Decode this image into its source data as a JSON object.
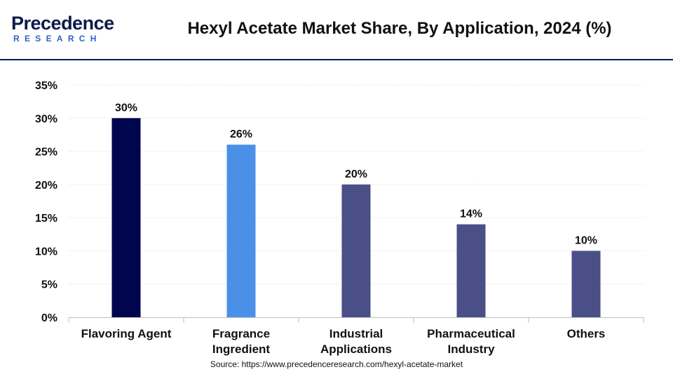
{
  "header": {
    "logo_top": "Precedence",
    "logo_bottom": "RESEARCH",
    "title": "Hexyl Acetate Market Share, By Application, 2024 (%)"
  },
  "source": "Source: https://www.precedenceresearch.com/hexyl-acetate-market",
  "colors": {
    "flavoring": "#00064d",
    "fragrance": "#4a90e8",
    "other_bars": "#4b4f87"
  },
  "chart_data": {
    "type": "bar",
    "title": "Hexyl Acetate Market Share, By Application, 2024 (%)",
    "categories": [
      [
        "Flavoring Agent"
      ],
      [
        "Fragrance",
        "Ingredient"
      ],
      [
        "Industrial",
        "Applications"
      ],
      [
        "Pharmaceutical",
        "Industry"
      ],
      [
        "Others"
      ]
    ],
    "values": [
      30,
      26,
      20,
      14,
      10
    ],
    "data_labels": [
      "30%",
      "26%",
      "20%",
      "14%",
      "10%"
    ],
    "bar_colors": [
      "#00064d",
      "#4a90e8",
      "#4b4f87",
      "#4b4f87",
      "#4b4f87"
    ],
    "yticks": [
      0,
      5,
      10,
      15,
      20,
      25,
      30,
      35
    ],
    "ytick_labels": [
      "0%",
      "5%",
      "10%",
      "15%",
      "20%",
      "25%",
      "30%",
      "35%"
    ],
    "ylim": [
      0,
      35
    ],
    "xlabel": "",
    "ylabel": "",
    "grid": true,
    "legend": "none"
  }
}
